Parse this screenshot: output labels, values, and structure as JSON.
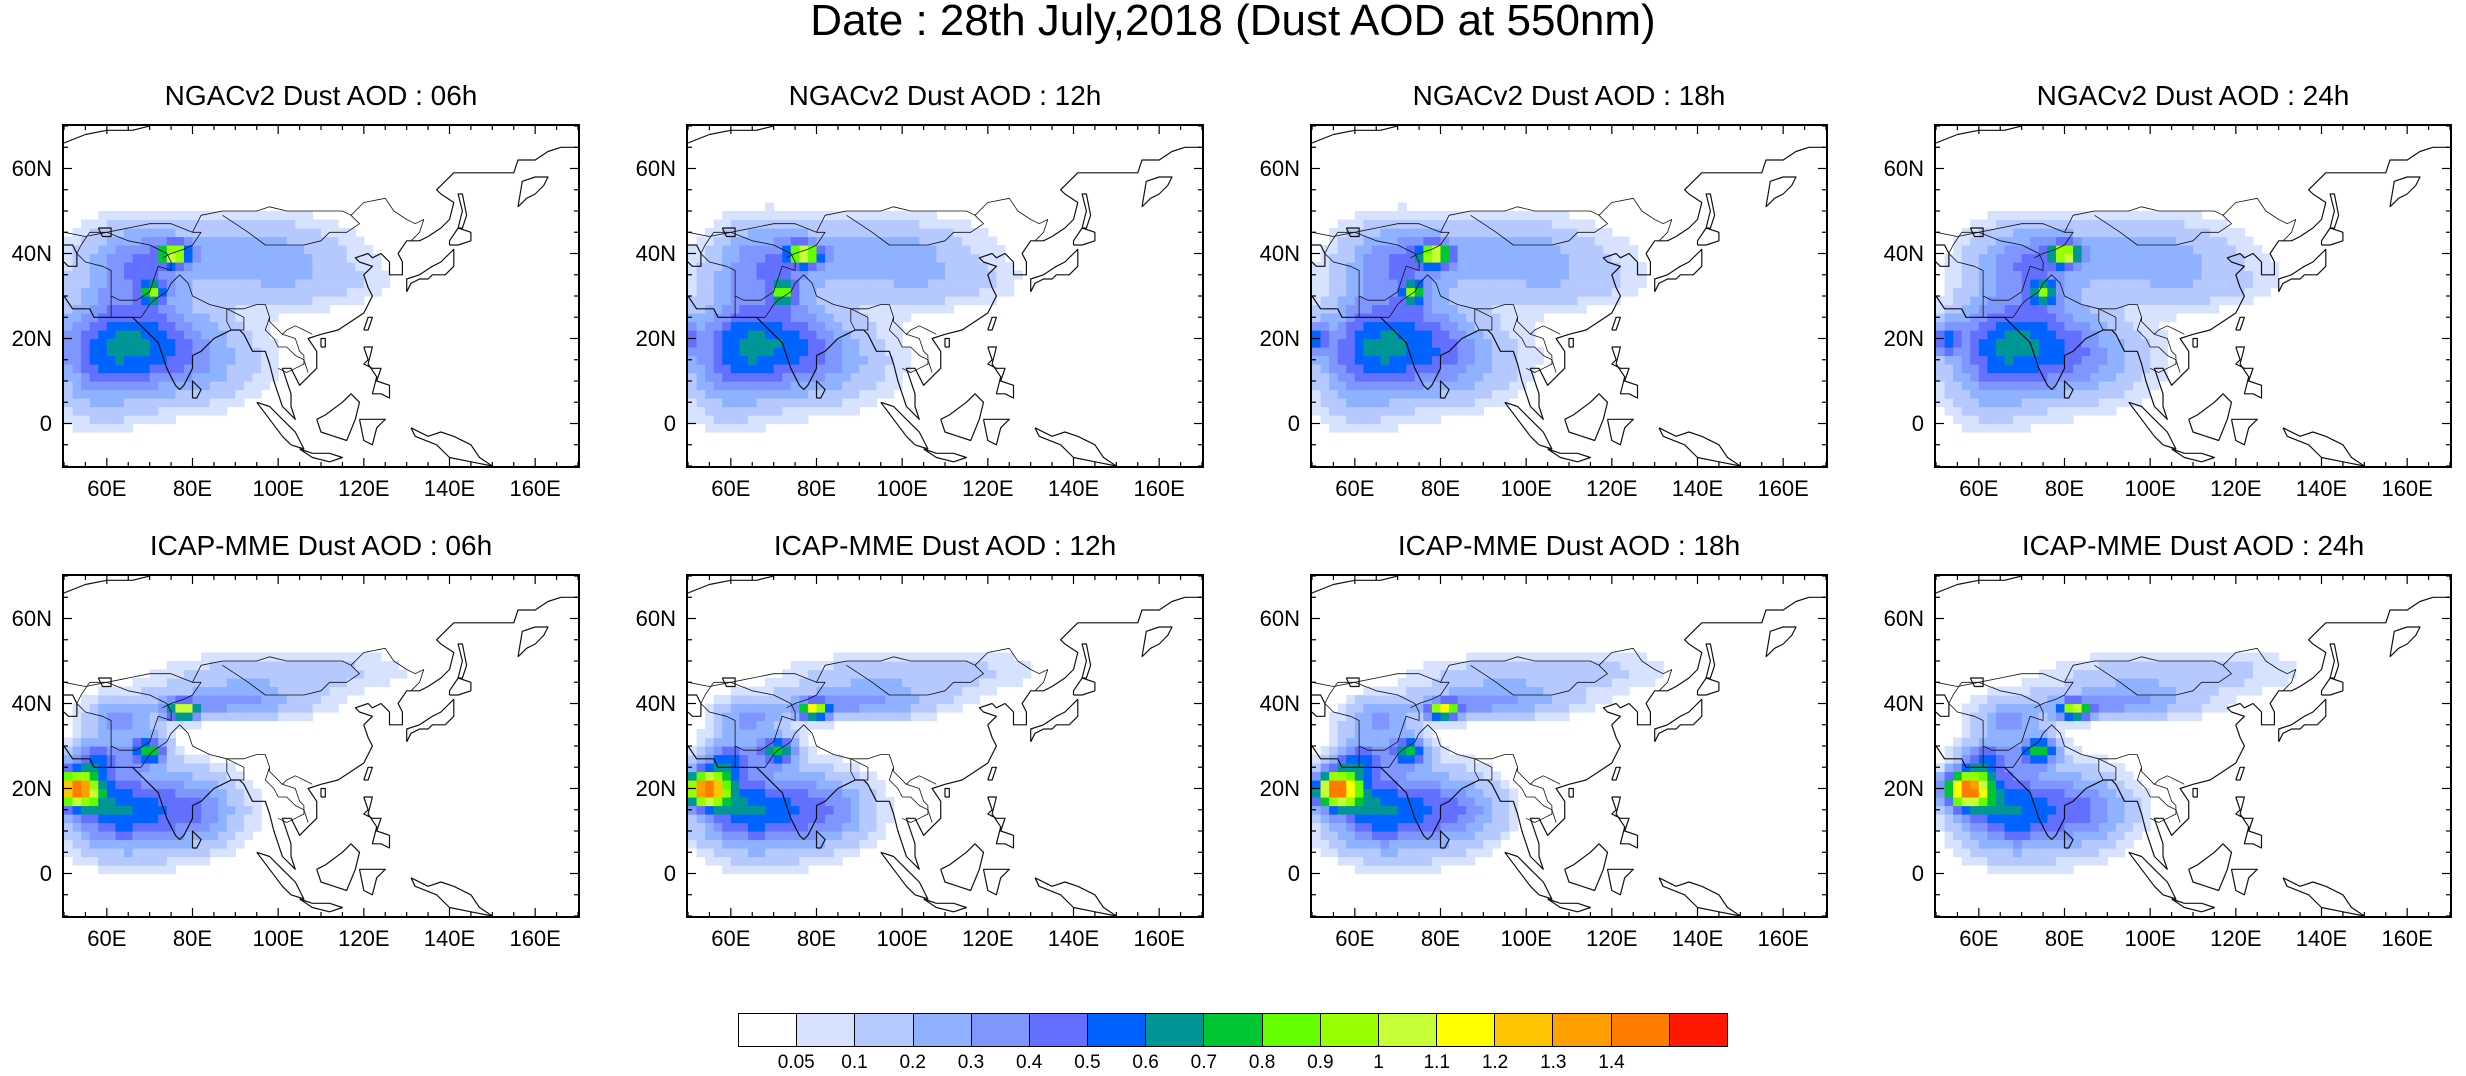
{
  "title": "Date : 28th July,2018 (Dust AOD at 550nm)",
  "panels": [
    {
      "title": "NGACv2 Dust AOD : 06h",
      "model": "ngac",
      "hour": 6
    },
    {
      "title": "NGACv2 Dust AOD : 12h",
      "model": "ngac",
      "hour": 12
    },
    {
      "title": "NGACv2 Dust AOD : 18h",
      "model": "ngac",
      "hour": 18
    },
    {
      "title": "NGACv2 Dust AOD : 24h",
      "model": "ngac",
      "hour": 24
    },
    {
      "title": "ICAP-MME Dust AOD : 06h",
      "model": "icap",
      "hour": 6
    },
    {
      "title": "ICAP-MME Dust AOD : 12h",
      "model": "icap",
      "hour": 12
    },
    {
      "title": "ICAP-MME Dust AOD : 18h",
      "model": "icap",
      "hour": 18
    },
    {
      "title": "ICAP-MME Dust AOD : 24h",
      "model": "icap",
      "hour": 24
    }
  ],
  "map_extent": {
    "lon_min": 50,
    "lon_max": 170,
    "lat_min": -10,
    "lat_max": 70
  },
  "lat_ticks": [
    {
      "value": 60,
      "label": "60N"
    },
    {
      "value": 40,
      "label": "40N"
    },
    {
      "value": 20,
      "label": "20N"
    },
    {
      "value": 0,
      "label": "0"
    }
  ],
  "lon_ticks": [
    {
      "value": 60,
      "label": "60E"
    },
    {
      "value": 80,
      "label": "80E"
    },
    {
      "value": 100,
      "label": "100E"
    },
    {
      "value": 120,
      "label": "120E"
    },
    {
      "value": 140,
      "label": "140E"
    },
    {
      "value": 160,
      "label": "160E"
    }
  ],
  "colorbar": {
    "levels": [
      "0.05",
      "0.1",
      "0.2",
      "0.3",
      "0.4",
      "0.5",
      "0.6",
      "0.7",
      "0.8",
      "0.9",
      "1",
      "1.1",
      "1.2",
      "1.3",
      "1.4"
    ],
    "colors": [
      "#ffffff",
      "#d6e2ff",
      "#b5c9ff",
      "#8eb2ff",
      "#7f96ff",
      "#6370ff",
      "#0063ff",
      "#009696",
      "#00c633",
      "#63ff00",
      "#96ff00",
      "#c6ff33",
      "#ffff00",
      "#ffc600",
      "#ffa000",
      "#ff7c00",
      "#ff1900"
    ]
  }
}
